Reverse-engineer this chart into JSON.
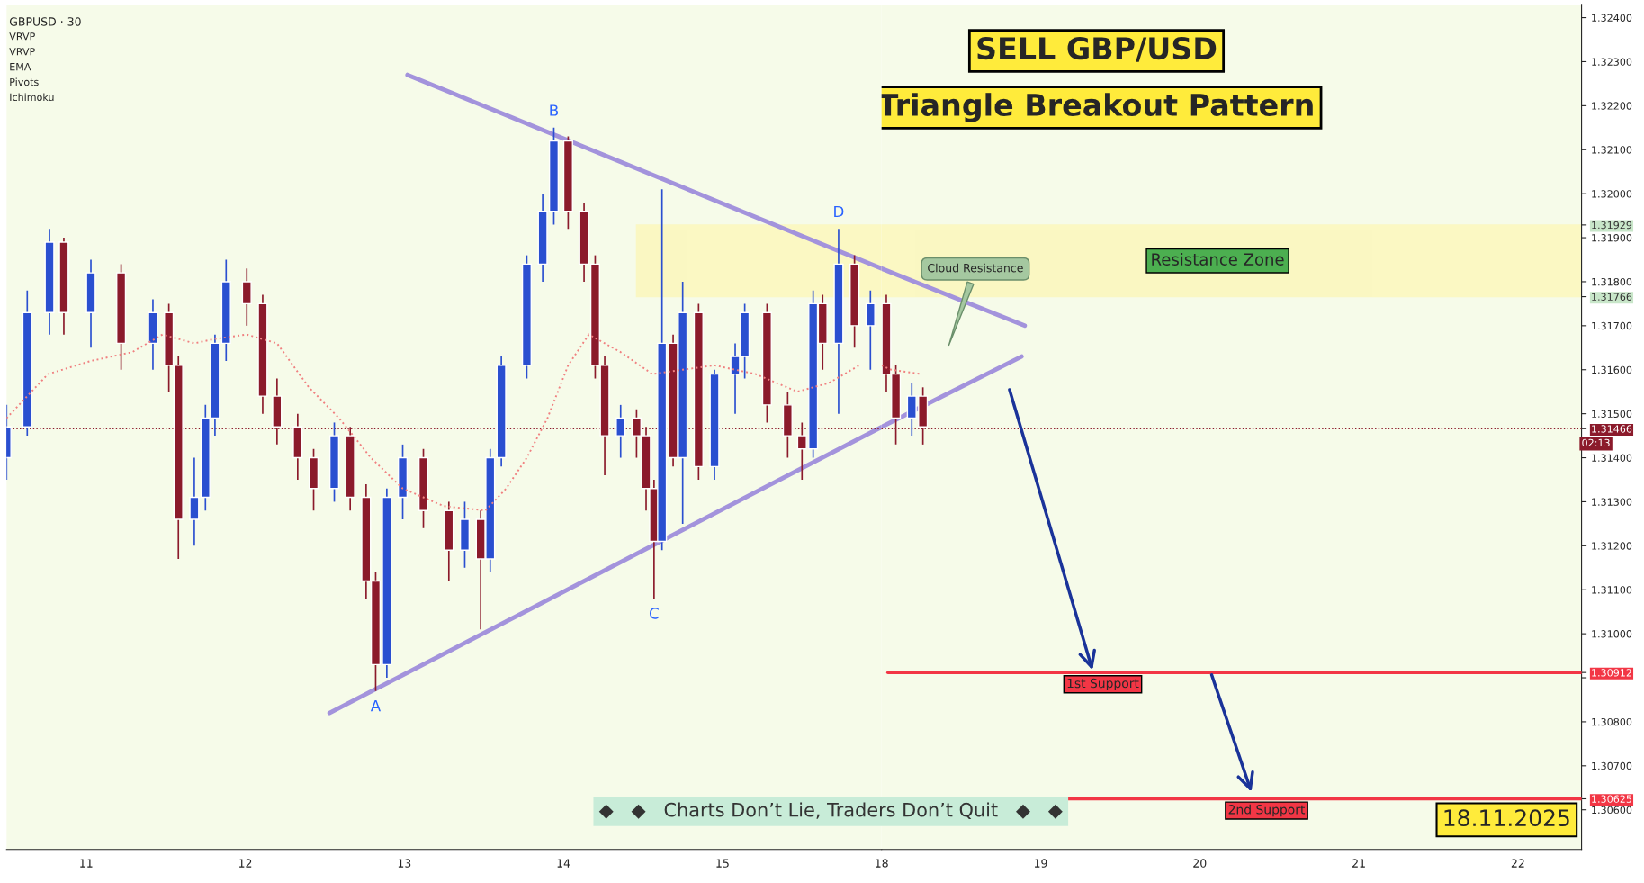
{
  "chart_data": [
    {
      "type": "candlestick",
      "x": [
        10.5,
        10.63,
        10.77,
        10.86,
        11.03,
        11.22,
        11.42,
        11.52,
        11.58,
        11.68,
        11.75,
        11.81,
        11.88,
        12.01,
        12.11,
        12.2,
        12.33,
        12.43,
        12.56,
        12.66,
        12.76,
        12.82,
        12.89,
        12.99,
        13.12,
        13.28,
        13.38,
        13.48,
        13.54,
        13.61,
        13.77,
        13.87,
        13.94,
        14.03,
        14.13,
        14.2,
        14.26,
        14.36,
        14.46,
        14.52,
        14.57,
        14.62,
        14.69,
        14.75,
        14.85,
        14.95,
        15.08,
        15.14,
        15.28,
        15.41,
        15.5,
        15.57,
        15.63,
        15.73,
        15.83,
        15.93
      ],
      "ohlc": [
        [
          1.314,
          1.3152,
          1.3135,
          1.3147
        ],
        [
          1.3147,
          1.3178,
          1.3145,
          1.3173
        ],
        [
          1.3173,
          1.3192,
          1.3168,
          1.3189
        ],
        [
          1.3189,
          1.319,
          1.3168,
          1.3173
        ],
        [
          1.3173,
          1.3185,
          1.3165,
          1.3182
        ],
        [
          1.3182,
          1.3184,
          1.316,
          1.3166
        ],
        [
          1.3166,
          1.3176,
          1.316,
          1.3173
        ],
        [
          1.3173,
          1.3175,
          1.3155,
          1.3161
        ],
        [
          1.3161,
          1.3163,
          1.3117,
          1.3126
        ],
        [
          1.3126,
          1.314,
          1.312,
          1.3131
        ],
        [
          1.3131,
          1.3152,
          1.3128,
          1.3149
        ],
        [
          1.3149,
          1.3168,
          1.3145,
          1.3166
        ],
        [
          1.3166,
          1.3185,
          1.3162,
          1.318
        ],
        [
          1.318,
          1.3183,
          1.317,
          1.3175
        ],
        [
          1.3175,
          1.3177,
          1.315,
          1.3154
        ],
        [
          1.3154,
          1.3158,
          1.3143,
          1.3147
        ],
        [
          1.3147,
          1.315,
          1.3135,
          1.314
        ],
        [
          1.314,
          1.3142,
          1.3128,
          1.3133
        ],
        [
          1.3133,
          1.3148,
          1.313,
          1.3145
        ],
        [
          1.3145,
          1.3147,
          1.3128,
          1.3131
        ],
        [
          1.3131,
          1.3134,
          1.3108,
          1.3112
        ],
        [
          1.3112,
          1.3114,
          1.3087,
          1.3093
        ],
        [
          1.3093,
          1.3133,
          1.309,
          1.3131
        ],
        [
          1.3131,
          1.3143,
          1.3126,
          1.314
        ],
        [
          1.314,
          1.3142,
          1.3124,
          1.3128
        ],
        [
          1.3128,
          1.313,
          1.3112,
          1.3119
        ],
        [
          1.3119,
          1.313,
          1.3115,
          1.3126
        ],
        [
          1.3126,
          1.3128,
          1.3101,
          1.3117
        ],
        [
          1.3117,
          1.3142,
          1.3114,
          1.314
        ],
        [
          1.314,
          1.3163,
          1.3138,
          1.3161
        ],
        [
          1.3161,
          1.3186,
          1.3158,
          1.3184
        ],
        [
          1.3184,
          1.32,
          1.318,
          1.3196
        ],
        [
          1.3196,
          1.3215,
          1.3193,
          1.3212
        ],
        [
          1.3212,
          1.3213,
          1.3192,
          1.3196
        ],
        [
          1.3196,
          1.3198,
          1.318,
          1.3184
        ],
        [
          1.3184,
          1.3186,
          1.3158,
          1.3161
        ],
        [
          1.3161,
          1.3163,
          1.3136,
          1.3145
        ],
        [
          1.3145,
          1.3152,
          1.314,
          1.3149
        ],
        [
          1.3149,
          1.3151,
          1.314,
          1.3145
        ],
        [
          1.3145,
          1.3147,
          1.3128,
          1.3133
        ],
        [
          1.3133,
          1.3135,
          1.3108,
          1.3121
        ],
        [
          1.3121,
          1.3201,
          1.3119,
          1.3166
        ],
        [
          1.3166,
          1.3168,
          1.3138,
          1.314
        ],
        [
          1.314,
          1.318,
          1.3125,
          1.3173
        ],
        [
          1.3173,
          1.3175,
          1.3135,
          1.3138
        ],
        [
          1.3138,
          1.316,
          1.3135,
          1.3159
        ],
        [
          1.3159,
          1.3166,
          1.315,
          1.3163
        ],
        [
          1.3163,
          1.3175,
          1.3158,
          1.3173
        ],
        [
          1.3173,
          1.3175,
          1.3148,
          1.3152
        ],
        [
          1.3152,
          1.3155,
          1.314,
          1.3145
        ],
        [
          1.3145,
          1.3148,
          1.3135,
          1.3142
        ],
        [
          1.3142,
          1.3178,
          1.314,
          1.3175
        ],
        [
          1.3175,
          1.3177,
          1.316,
          1.3166
        ],
        [
          1.3166,
          1.3192,
          1.315,
          1.3184
        ],
        [
          1.3184,
          1.3186,
          1.3165,
          1.317
        ],
        [
          1.317,
          1.3178,
          1.316,
          1.3175
        ]
      ],
      "colors": [
        "#2a4fd0",
        "#2a4fd0",
        "#2a4fd0",
        "#8b1a2b",
        "#2a4fd0",
        "#8b1a2b",
        "#2a4fd0",
        "#8b1a2b",
        "#8b1a2b",
        "#2a4fd0",
        "#2a4fd0",
        "#2a4fd0",
        "#2a4fd0",
        "#8b1a2b",
        "#8b1a2b",
        "#8b1a2b",
        "#8b1a2b",
        "#8b1a2b",
        "#2a4fd0",
        "#8b1a2b",
        "#8b1a2b",
        "#8b1a2b",
        "#2a4fd0",
        "#2a4fd0",
        "#8b1a2b",
        "#8b1a2b",
        "#2a4fd0",
        "#8b1a2b",
        "#2a4fd0",
        "#2a4fd0",
        "#2a4fd0",
        "#2a4fd0",
        "#2a4fd0",
        "#8b1a2b",
        "#8b1a2b",
        "#8b1a2b",
        "#8b1a2b",
        "#2a4fd0",
        "#8b1a2b",
        "#8b1a2b",
        "#8b1a2b",
        "#2a4fd0",
        "#8b1a2b",
        "#2a4fd0",
        "#8b1a2b",
        "#2a4fd0",
        "#2a4fd0",
        "#2a4fd0",
        "#8b1a2b",
        "#8b1a2b",
        "#8b1a2b",
        "#2a4fd0",
        "#8b1a2b",
        "#2a4fd0",
        "#8b1a2b",
        "#2a4fd0"
      ],
      "series": [
        {
          "type": "line",
          "line_style": "dotted",
          "color": "#f08080",
          "x": [
            10.5,
            10.76,
            11.03,
            11.29,
            11.48,
            11.68,
            11.81,
            12.01,
            12.2,
            12.4,
            12.59,
            12.79,
            12.99,
            13.25,
            13.51,
            13.64,
            13.77,
            13.9,
            14.03,
            14.16,
            14.36,
            14.56,
            14.75,
            14.95,
            15.21,
            15.47,
            15.67,
            15.86
          ],
          "values": [
            1.3149,
            1.3159,
            1.3162,
            1.3164,
            1.3168,
            1.3166,
            1.3167,
            1.3168,
            1.3166,
            1.3156,
            1.3149,
            1.314,
            1.3133,
            1.3129,
            1.3128,
            1.3133,
            1.314,
            1.3149,
            1.3161,
            1.3168,
            1.3164,
            1.3159,
            1.316,
            1.3161,
            1.3159,
            1.3155,
            1.3157,
            1.3161
          ]
        },
        {
          "type": "line",
          "line_style": "solid",
          "color": "#a393dc",
          "x": [
            13.02,
            16.0
          ],
          "values": [
            1.3227,
            1.3183
          ]
        },
        {
          "type": "line",
          "line_style": "solid",
          "color": "#a393dc",
          "x": [
            12.53,
            16.0
          ],
          "values": [
            1.3082,
            1.3147
          ]
        }
      ],
      "bands": [
        {
          "axis": "y",
          "from": 1.31766,
          "to": 1.31929,
          "color": "#fff59d"
        }
      ],
      "ref_lines": [
        {
          "axis": "y",
          "value": 1.31466,
          "color": "#8b1a2b",
          "line_style": "dotted"
        }
      ],
      "annotations": [
        {
          "text": "A",
          "x": 12.82,
          "y": 1.3087
        },
        {
          "text": "B",
          "x": 13.94,
          "y": 1.3215
        },
        {
          "text": "C",
          "x": 14.57,
          "y": 1.3108
        },
        {
          "text": "D",
          "x": 15.73,
          "y": 1.3192
        },
        "GBPUSD · 30",
        "VRVP",
        "VRVP",
        "EMA",
        "Pivots",
        "Ichimoku",
        "◆   ◆   Charts Don’t Lie, Traders Don’t Quit   ◆   ◆"
      ],
      "xlim": [
        10.5,
        16.0
      ],
      "xticks": [
        11,
        12,
        13,
        14,
        15
      ],
      "ylim": [
        1.3051,
        1.3243
      ],
      "tick_labels": "x"
    },
    {
      "type": "candlestick",
      "title": "SELL GBP/USD",
      "subtitle": "Triangle Breakout Pattern",
      "x": [
        18.03,
        18.09,
        18.19,
        18.26
      ],
      "ohlc": [
        [
          1.3175,
          1.3177,
          1.3155,
          1.3159
        ],
        [
          1.3159,
          1.3161,
          1.3143,
          1.3149
        ],
        [
          1.3149,
          1.3157,
          1.3145,
          1.3154
        ],
        [
          1.3154,
          1.3156,
          1.3143,
          1.3147
        ]
      ],
      "colors": [
        "#8b1a2b",
        "#8b1a2b",
        "#2a4fd0",
        "#8b1a2b"
      ],
      "series": [
        {
          "type": "line",
          "line_style": "dotted",
          "color": "#f08080",
          "x": [
            18.0,
            18.06,
            18.25
          ],
          "values": [
            1.3161,
            1.316,
            1.3159
          ]
        },
        {
          "type": "line",
          "line_style": "solid",
          "color": "#a393dc",
          "x": [
            18.0,
            18.9
          ],
          "values": [
            1.3183,
            1.317
          ]
        },
        {
          "type": "line",
          "line_style": "solid",
          "color": "#a393dc",
          "x": [
            18.0,
            18.88
          ],
          "values": [
            1.3147,
            1.3163
          ]
        }
      ],
      "bands": [
        {
          "axis": "y",
          "from": 1.31766,
          "to": 1.31929,
          "label": "Resistance Zone",
          "color": "#fff59d"
        }
      ],
      "ref_lines": [
        {
          "axis": "y",
          "value": 1.30912,
          "label": "1st Support",
          "color": "#f23645",
          "line_style": "solid"
        },
        {
          "axis": "y",
          "value": 1.30625,
          "label": "2nd Support",
          "color": "#f23645",
          "line_style": "solid"
        },
        {
          "axis": "y",
          "value": 1.31466,
          "color": "#8b1a2b",
          "line_style": "dotted"
        }
      ],
      "annotations": [
        "Cloud Resistance",
        "18.11.2025",
        "02:13"
      ],
      "xlim": [
        18.0,
        22.4
      ],
      "xticks": [
        18,
        19,
        20,
        21,
        22
      ],
      "ylim": [
        1.3051,
        1.3243
      ],
      "yticks": [
        {
          "value": 1.306,
          "label": "1.30600"
        },
        {
          "value": 1.307,
          "label": "1.30700"
        },
        {
          "value": 1.308,
          "label": "1.30800"
        },
        {
          "value": 1.309,
          "label": null
        },
        {
          "value": 1.31,
          "label": "1.31000"
        },
        {
          "value": 1.311,
          "label": "1.31100"
        },
        {
          "value": 1.312,
          "label": "1.31200"
        },
        {
          "value": 1.313,
          "label": "1.31300"
        },
        {
          "value": 1.314,
          "label": "1.31400"
        },
        {
          "value": 1.315,
          "label": "1.31500"
        },
        {
          "value": 1.316,
          "label": "1.31600"
        },
        {
          "value": 1.317,
          "label": "1.31700"
        },
        {
          "value": 1.318,
          "label": "1.31800"
        },
        {
          "value": 1.319,
          "label": "1.31900"
        },
        {
          "value": 1.32,
          "label": "1.32000"
        },
        {
          "value": 1.321,
          "label": "1.32100"
        },
        {
          "value": 1.322,
          "label": "1.32200"
        },
        {
          "value": 1.323,
          "label": "1.32300"
        },
        {
          "value": 1.324,
          "label": "1.32400"
        },
        {
          "value": 1.31929,
          "label": "1.31929"
        },
        {
          "value": 1.31766,
          "label": "1.31766"
        },
        {
          "value": 1.31466,
          "label": "1.31466"
        },
        {
          "value": 1.30912,
          "label": "1.30912"
        },
        {
          "value": 1.30625,
          "label": "1.30625"
        }
      ]
    }
  ]
}
